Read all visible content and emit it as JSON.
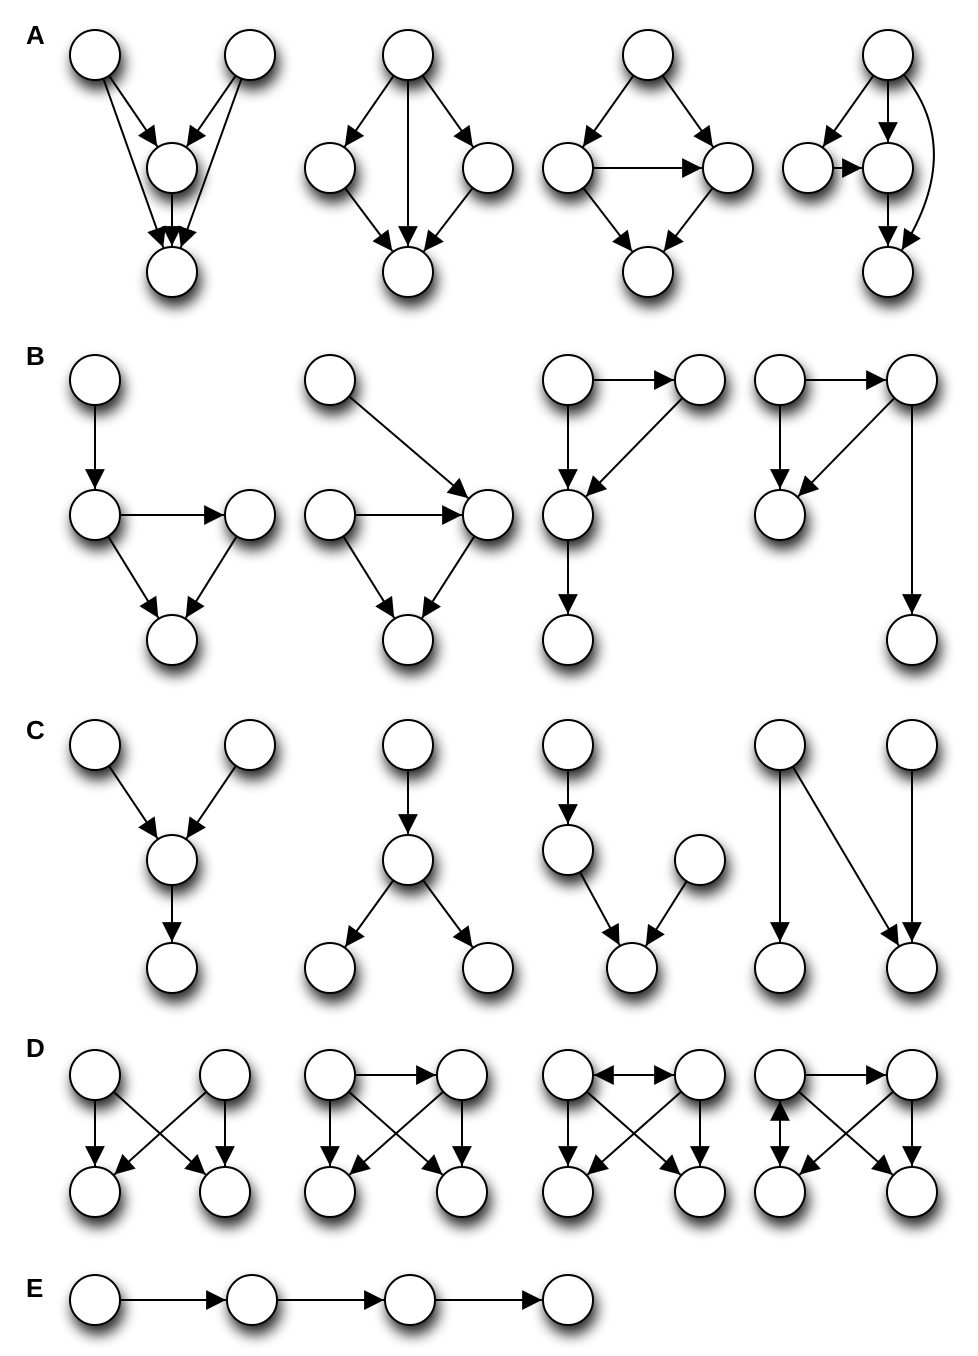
{
  "rows": [
    {
      "label": "A",
      "motifs": [
        {
          "nodes": 4,
          "edges": [
            [
              0,
              2
            ],
            [
              0,
              3
            ],
            [
              1,
              2
            ],
            [
              1,
              3
            ],
            [
              2,
              3
            ]
          ]
        },
        {
          "nodes": 4,
          "edges": [
            [
              0,
              1
            ],
            [
              0,
              2
            ],
            [
              0,
              3
            ],
            [
              1,
              3
            ],
            [
              2,
              3
            ]
          ]
        },
        {
          "nodes": 4,
          "edges": [
            [
              0,
              1
            ],
            [
              0,
              2
            ],
            [
              1,
              2
            ],
            [
              1,
              3
            ],
            [
              2,
              3
            ]
          ]
        },
        {
          "nodes": 4,
          "edges": [
            [
              0,
              1
            ],
            [
              0,
              2
            ],
            [
              0,
              3
            ],
            [
              1,
              2
            ],
            [
              2,
              3
            ]
          ]
        }
      ]
    },
    {
      "label": "B",
      "motifs": [
        {
          "nodes": 4,
          "edges": [
            [
              0,
              1
            ],
            [
              1,
              2
            ],
            [
              1,
              3
            ],
            [
              2,
              3
            ]
          ]
        },
        {
          "nodes": 4,
          "edges": [
            [
              0,
              2
            ],
            [
              1,
              2
            ],
            [
              1,
              3
            ],
            [
              2,
              3
            ]
          ]
        },
        {
          "nodes": 4,
          "edges": [
            [
              0,
              1
            ],
            [
              0,
              2
            ],
            [
              1,
              2
            ],
            [
              2,
              3
            ]
          ]
        },
        {
          "nodes": 4,
          "edges": [
            [
              0,
              1
            ],
            [
              0,
              2
            ],
            [
              1,
              2
            ],
            [
              1,
              3
            ]
          ]
        }
      ]
    },
    {
      "label": "C",
      "motifs": [
        {
          "nodes": 4,
          "edges": [
            [
              0,
              2
            ],
            [
              1,
              2
            ],
            [
              2,
              3
            ]
          ]
        },
        {
          "nodes": 4,
          "edges": [
            [
              0,
              1
            ],
            [
              1,
              2
            ],
            [
              1,
              3
            ]
          ]
        },
        {
          "nodes": 4,
          "edges": [
            [
              0,
              1
            ],
            [
              1,
              3
            ],
            [
              2,
              3
            ]
          ]
        },
        {
          "nodes": 4,
          "edges": [
            [
              0,
              2
            ],
            [
              0,
              3
            ],
            [
              1,
              3
            ]
          ]
        }
      ]
    },
    {
      "label": "D",
      "motifs": [
        {
          "nodes": 4,
          "edges": [
            [
              0,
              2
            ],
            [
              0,
              3
            ],
            [
              1,
              2
            ],
            [
              1,
              3
            ]
          ]
        },
        {
          "nodes": 4,
          "edges": [
            [
              0,
              1
            ],
            [
              0,
              2
            ],
            [
              0,
              3
            ],
            [
              1,
              2
            ],
            [
              1,
              3
            ]
          ]
        },
        {
          "nodes": 4,
          "edges": [
            [
              0,
              1,
              "bidirectional"
            ],
            [
              0,
              2
            ],
            [
              0,
              3
            ],
            [
              1,
              2
            ],
            [
              1,
              3
            ]
          ]
        },
        {
          "nodes": 4,
          "edges": [
            [
              0,
              1
            ],
            [
              0,
              2,
              "bidirectional"
            ],
            [
              0,
              3
            ],
            [
              1,
              2
            ],
            [
              1,
              3
            ]
          ]
        }
      ]
    },
    {
      "label": "E",
      "motifs": [
        {
          "nodes": 4,
          "edges": [
            [
              0,
              1
            ],
            [
              1,
              2
            ],
            [
              2,
              3
            ]
          ]
        }
      ]
    }
  ]
}
